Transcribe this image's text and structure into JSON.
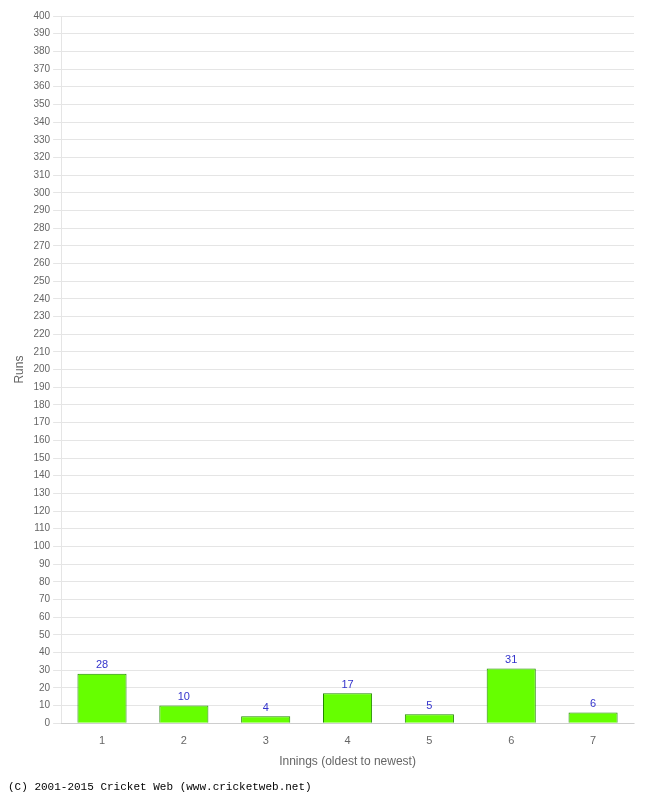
{
  "chart_data": {
    "type": "bar",
    "categories": [
      "1",
      "2",
      "3",
      "4",
      "5",
      "6",
      "7"
    ],
    "values": [
      28,
      10,
      4,
      17,
      5,
      31,
      6
    ],
    "color": "#66ff00",
    "xlabel": "Innings (oldest to newest)",
    "ylabel": "Runs",
    "ylim": [
      0,
      400
    ],
    "yticks": [
      0,
      10,
      20,
      30,
      40,
      50,
      60,
      70,
      80,
      90,
      100,
      110,
      120,
      130,
      140,
      150,
      160,
      170,
      180,
      190,
      200,
      210,
      220,
      230,
      240,
      250,
      260,
      270,
      280,
      290,
      300,
      310,
      320,
      330,
      340,
      350,
      360,
      370,
      380,
      390,
      400
    ],
    "grid": true,
    "data_labels": true,
    "annotations": [
      "(C) 2001-2015 Cricket Web (www.cricketweb.net)"
    ]
  }
}
